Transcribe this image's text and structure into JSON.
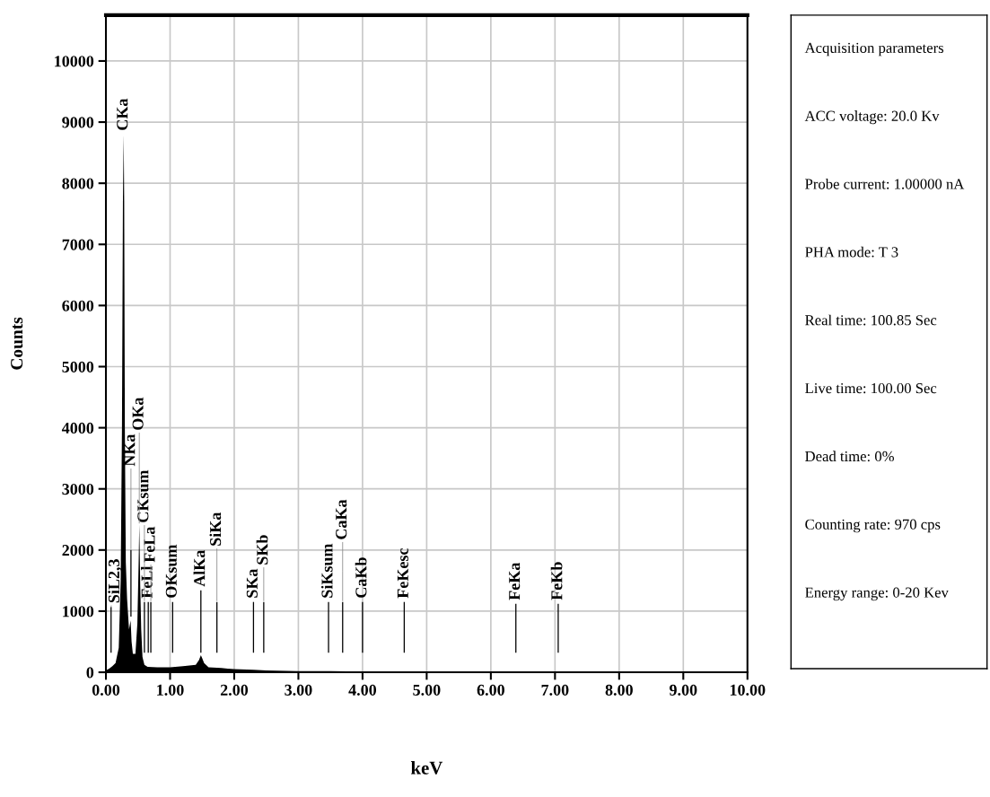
{
  "chart_data": {
    "type": "area",
    "xlabel": "keV",
    "ylabel": "Counts",
    "x": [
      0.0,
      0.05,
      0.1,
      0.15,
      0.2,
      0.23,
      0.25,
      0.265,
      0.277,
      0.285,
      0.295,
      0.31,
      0.33,
      0.36,
      0.385,
      0.4,
      0.42,
      0.46,
      0.49,
      0.51,
      0.52,
      0.535,
      0.55,
      0.57,
      0.6,
      0.65,
      0.8,
      1.0,
      1.2,
      1.4,
      1.45,
      1.48,
      1.5,
      1.53,
      1.6,
      1.8,
      2.0,
      2.3,
      2.5,
      3.0,
      3.5,
      4.0,
      4.5,
      5.0,
      10.0
    ],
    "series": [
      {
        "color": "#000000",
        "values": [
          30,
          60,
          100,
          150,
          400,
          1500,
          4000,
          7700,
          8800,
          7700,
          4000,
          1800,
          1200,
          700,
          850,
          500,
          300,
          300,
          800,
          1800,
          2420,
          1400,
          700,
          250,
          120,
          90,
          80,
          80,
          100,
          120,
          200,
          280,
          230,
          150,
          80,
          70,
          50,
          40,
          30,
          20,
          20,
          10,
          0,
          0,
          0
        ]
      },
      {
        "type": "bar",
        "color": "#000000",
        "x": [
          0.08,
          0.39,
          0.6,
          0.66,
          0.7,
          1.04,
          1.48,
          1.73,
          2.3,
          2.46,
          3.47,
          3.69,
          4.0,
          4.65,
          6.39,
          7.05
        ],
        "base": [
          320,
          910,
          320,
          320,
          320,
          320,
          320,
          320,
          320,
          320,
          320,
          320,
          320,
          320,
          320,
          320
        ],
        "values": [
          750,
          1090,
          830,
          830,
          830,
          830,
          1020,
          830,
          830,
          830,
          830,
          830,
          830,
          830,
          800,
          800
        ]
      }
    ],
    "xlim": [
      0,
      10
    ],
    "ylim": [
      0,
      10750
    ],
    "xticks": [
      {
        "value": 0,
        "label": "0.00"
      },
      {
        "value": 1,
        "label": "1.00"
      },
      {
        "value": 2,
        "label": "2.00"
      },
      {
        "value": 3,
        "label": "3.00"
      },
      {
        "value": 4,
        "label": "4.00"
      },
      {
        "value": 5,
        "label": "5.00"
      },
      {
        "value": 6,
        "label": "6.00"
      },
      {
        "value": 7,
        "label": "7.00"
      },
      {
        "value": 8,
        "label": "8.00"
      },
      {
        "value": 9,
        "label": "9.00"
      },
      {
        "value": 10,
        "label": "10.00"
      }
    ],
    "yticks": [
      0,
      1000,
      2000,
      3000,
      4000,
      5000,
      6000,
      7000,
      8000,
      9000,
      10000
    ],
    "grid": true,
    "legend": false,
    "annotations": [
      {
        "text": "SiL2,3",
        "x": 0.08,
        "y": 1070
      },
      {
        "text": "FeLl",
        "x": 0.66,
        "y": 1150
      },
      {
        "text": "OKsum",
        "x": 1.04,
        "y": 1150
      },
      {
        "text": "AlKa",
        "x": 1.48,
        "y": 1340
      },
      {
        "text": "SKa",
        "x": 2.3,
        "y": 1150
      },
      {
        "text": "SiKsum",
        "x": 3.47,
        "y": 1150
      },
      {
        "text": "CaKb",
        "x": 4.0,
        "y": 1150
      },
      {
        "text": "FeKesc",
        "x": 4.65,
        "y": 1150
      },
      {
        "text": "FeKa",
        "x": 6.39,
        "y": 1120
      },
      {
        "text": "FeKb",
        "x": 7.05,
        "y": 1120
      },
      {
        "text": "FeLa",
        "x": 0.7,
        "y": 1150
      },
      {
        "text": "CKsum",
        "x": 0.6,
        "y": 1150
      },
      {
        "text": "NKa",
        "x": 0.39,
        "y": 2000
      },
      {
        "text": "OKa",
        "x": 0.52,
        "y": 2420
      },
      {
        "text": "CKa",
        "x": 0.277,
        "y": 8800
      },
      {
        "text": "SiKa",
        "x": 1.73,
        "y": 1150
      },
      {
        "text": "SKb",
        "x": 2.46,
        "y": 1150
      },
      {
        "text": "CaKa",
        "x": 3.69,
        "y": 1150
      },
      "Acquisition parameters",
      "ACC voltage: 20.0 Kv",
      "Probe current: 1.00000 nA",
      "PHA mode: T 3",
      "Real time: 100.85 Sec",
      "Live time: 100.00 Sec",
      "Dead time: 0%",
      "Counting rate: 970 cps",
      "Energy range: 0-20 Kev"
    ]
  }
}
